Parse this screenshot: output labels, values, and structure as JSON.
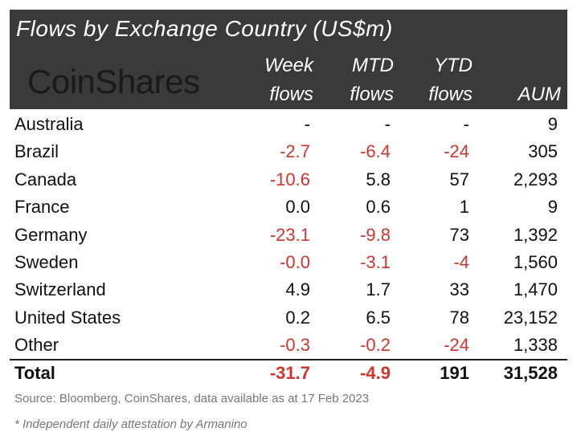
{
  "title": "Flows by Exchange Country (US$m)",
  "logo_text": "CoinShares",
  "columns": {
    "week": [
      "Week",
      "flows"
    ],
    "mtd": [
      "MTD",
      "flows"
    ],
    "ytd": [
      "YTD",
      "flows"
    ],
    "aum": [
      "",
      "AUM"
    ]
  },
  "rows": [
    {
      "name": "Australia",
      "week": "-",
      "mtd": "-",
      "ytd": "-",
      "aum": "9"
    },
    {
      "name": "Brazil",
      "week": "-2.7",
      "mtd": "-6.4",
      "ytd": "-24",
      "aum": "305"
    },
    {
      "name": "Canada",
      "week": "-10.6",
      "mtd": "5.8",
      "ytd": "57",
      "aum": "2,293"
    },
    {
      "name": "France",
      "week": "0.0",
      "mtd": "0.6",
      "ytd": "1",
      "aum": "9"
    },
    {
      "name": "Germany",
      "week": "-23.1",
      "mtd": "-9.8",
      "ytd": "73",
      "aum": "1,392"
    },
    {
      "name": "Sweden",
      "week": "-0.0",
      "mtd": "-3.1",
      "ytd": "-4",
      "aum": "1,560"
    },
    {
      "name": "Switzerland",
      "week": "4.9",
      "mtd": "1.7",
      "ytd": "33",
      "aum": "1,470"
    },
    {
      "name": "United States",
      "week": "0.2",
      "mtd": "6.5",
      "ytd": "78",
      "aum": "23,152"
    },
    {
      "name": "Other",
      "week": "-0.3",
      "mtd": "-0.2",
      "ytd": "-24",
      "aum": "1,338"
    }
  ],
  "total": {
    "name": "Total",
    "week": "-31.7",
    "mtd": "-4.9",
    "ytd": "191",
    "aum": "31,528"
  },
  "negative_color": "#d0342c",
  "source": "Source: Bloomberg, CoinShares, data available as at 17 Feb 2023",
  "footnote": "* Independent daily attestation by Armanino"
}
